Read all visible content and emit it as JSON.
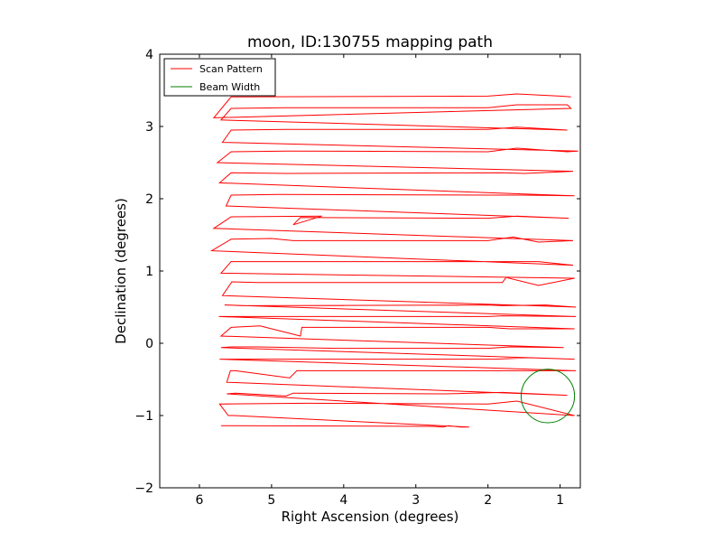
{
  "chart_data": {
    "type": "line",
    "title": "moon, ID:130755 mapping path",
    "xlabel": "Right Ascension (degrees)",
    "ylabel": "Declination (degrees)",
    "xlim": [
      6.55,
      0.72
    ],
    "ylim": [
      -2,
      4
    ],
    "x_inverted": true,
    "xticks": [
      6,
      5,
      4,
      3,
      2,
      1
    ],
    "yticks": [
      -2,
      -1,
      0,
      1,
      2,
      3,
      4
    ],
    "grid": false,
    "legend_position": "top-left",
    "series": [
      {
        "name": "Scan Pattern",
        "color": "#ff0000",
        "points": [
          [
            5.7,
            -1.14
          ],
          [
            2.75,
            -1.15
          ],
          [
            2.62,
            -1.16
          ],
          [
            2.55,
            -1.14
          ],
          [
            2.38,
            -1.16
          ],
          [
            2.26,
            -1.16
          ],
          [
            5.52,
            -1.0
          ],
          [
            5.6,
            -1.0
          ],
          [
            5.72,
            -0.84
          ],
          [
            4.5,
            -0.83
          ],
          [
            2.0,
            -0.84
          ],
          [
            1.6,
            -0.8
          ],
          [
            0.8,
            -1.0
          ],
          [
            5.62,
            -0.7
          ],
          [
            5.5,
            -0.69
          ],
          [
            4.8,
            -0.73
          ],
          [
            4.7,
            -0.69
          ],
          [
            2.6,
            -0.7
          ],
          [
            1.8,
            -0.68
          ],
          [
            0.9,
            -0.72
          ],
          [
            5.62,
            -0.54
          ],
          [
            5.57,
            -0.38
          ],
          [
            5.5,
            -0.38
          ],
          [
            4.75,
            -0.48
          ],
          [
            4.65,
            -0.38
          ],
          [
            2.0,
            -0.38
          ],
          [
            1.5,
            -0.38
          ],
          [
            0.78,
            -0.38
          ],
          [
            5.72,
            -0.22
          ],
          [
            5.57,
            -0.22
          ],
          [
            5.3,
            -0.22
          ],
          [
            4.5,
            -0.22
          ],
          [
            1.9,
            -0.22
          ],
          [
            1.4,
            -0.2
          ],
          [
            0.8,
            -0.22
          ],
          [
            5.7,
            -0.06
          ],
          [
            5.55,
            -0.05
          ],
          [
            5.2,
            -0.05
          ],
          [
            4.1,
            -0.07
          ],
          [
            2.0,
            -0.07
          ],
          [
            1.7,
            -0.05
          ],
          [
            0.95,
            -0.06
          ],
          [
            5.7,
            0.1
          ],
          [
            5.56,
            0.22
          ],
          [
            5.16,
            0.24
          ],
          [
            4.6,
            0.1
          ],
          [
            4.58,
            0.22
          ],
          [
            2.0,
            0.22
          ],
          [
            1.7,
            0.2
          ],
          [
            0.8,
            0.2
          ],
          [
            5.73,
            0.37
          ],
          [
            4.8,
            0.37
          ],
          [
            2.0,
            0.37
          ],
          [
            1.8,
            0.38
          ],
          [
            0.78,
            0.37
          ],
          [
            5.65,
            0.53
          ],
          [
            5.4,
            0.52
          ],
          [
            2.0,
            0.53
          ],
          [
            1.8,
            0.52
          ],
          [
            1.2,
            0.53
          ],
          [
            0.78,
            0.5
          ],
          [
            5.68,
            0.66
          ],
          [
            5.55,
            0.85
          ],
          [
            5.2,
            0.84
          ],
          [
            1.8,
            0.84
          ],
          [
            1.75,
            0.91
          ],
          [
            1.3,
            0.8
          ],
          [
            0.8,
            0.9
          ],
          [
            5.7,
            0.97
          ],
          [
            5.56,
            1.13
          ],
          [
            5.2,
            1.13
          ],
          [
            2.0,
            1.13
          ],
          [
            1.3,
            1.13
          ],
          [
            0.82,
            1.08
          ],
          [
            5.83,
            1.28
          ],
          [
            5.56,
            1.44
          ],
          [
            5.0,
            1.45
          ],
          [
            4.7,
            1.42
          ],
          [
            2.0,
            1.42
          ],
          [
            1.65,
            1.47
          ],
          [
            1.3,
            1.4
          ],
          [
            0.82,
            1.42
          ],
          [
            5.8,
            1.59
          ],
          [
            5.56,
            1.75
          ],
          [
            4.3,
            1.76
          ],
          [
            4.7,
            1.64
          ],
          [
            4.6,
            1.74
          ],
          [
            2.0,
            1.73
          ],
          [
            1.6,
            1.76
          ],
          [
            0.88,
            1.73
          ],
          [
            5.63,
            1.9
          ],
          [
            5.56,
            2.05
          ],
          [
            4.9,
            2.06
          ],
          [
            2.0,
            2.05
          ],
          [
            1.5,
            2.05
          ],
          [
            0.8,
            2.04
          ],
          [
            5.72,
            2.22
          ],
          [
            5.56,
            2.36
          ],
          [
            4.8,
            2.35
          ],
          [
            1.8,
            2.36
          ],
          [
            1.5,
            2.35
          ],
          [
            0.82,
            2.38
          ],
          [
            5.75,
            2.5
          ],
          [
            5.56,
            2.65
          ],
          [
            4.8,
            2.66
          ],
          [
            2.0,
            2.65
          ],
          [
            1.6,
            2.7
          ],
          [
            0.9,
            2.65
          ],
          [
            0.75,
            2.66
          ],
          [
            5.68,
            2.78
          ],
          [
            5.56,
            2.95
          ],
          [
            4.8,
            2.96
          ],
          [
            2.0,
            2.96
          ],
          [
            1.6,
            2.99
          ],
          [
            0.9,
            2.95
          ],
          [
            5.7,
            3.09
          ],
          [
            5.56,
            3.25
          ],
          [
            4.8,
            3.26
          ],
          [
            2.0,
            3.26
          ],
          [
            1.6,
            3.3
          ],
          [
            0.9,
            3.3
          ],
          [
            0.85,
            3.25
          ],
          [
            5.8,
            3.12
          ],
          [
            5.56,
            3.41
          ],
          [
            2.0,
            3.42
          ],
          [
            1.6,
            3.45
          ],
          [
            1.0,
            3.42
          ],
          [
            0.85,
            3.41
          ]
        ]
      },
      {
        "name": "Beam Width",
        "color": "#008000",
        "circle": {
          "center": [
            1.17,
            -0.73
          ],
          "radius_deg": 0.37
        }
      }
    ]
  }
}
